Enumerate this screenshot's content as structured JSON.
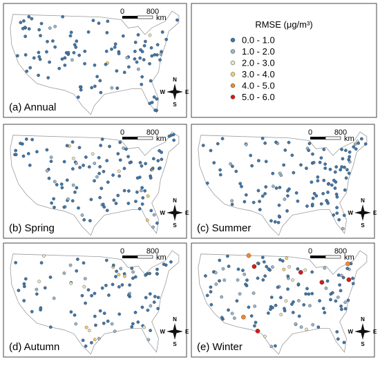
{
  "legend": {
    "title": "RMSE (μg/m³)",
    "classes": [
      {
        "label": "0.0 - 1.0",
        "color": "#3f78ad"
      },
      {
        "label": "1.0 - 2.0",
        "color": "#98b6cc"
      },
      {
        "label": "2.0 - 3.0",
        "color": "#e6e6c2"
      },
      {
        "label": "3.0 - 4.0",
        "color": "#f4cf6a"
      },
      {
        "label": "4.0 - 5.0",
        "color": "#ef8a34"
      },
      {
        "label": "5.0 - 6.0",
        "color": "#d7191c"
      }
    ]
  },
  "panels": [
    {
      "label": "(a) Annual"
    },
    {
      "label": "(b) Spring"
    },
    {
      "label": "(c) Summer"
    },
    {
      "label": "(d) Autumn"
    },
    {
      "label": "(e) Winter"
    }
  ],
  "scale_bar": {
    "start": "0",
    "end": "800",
    "unit": "km"
  },
  "compass": {
    "n": "N",
    "s": "S",
    "e": "E",
    "w": "W"
  }
}
